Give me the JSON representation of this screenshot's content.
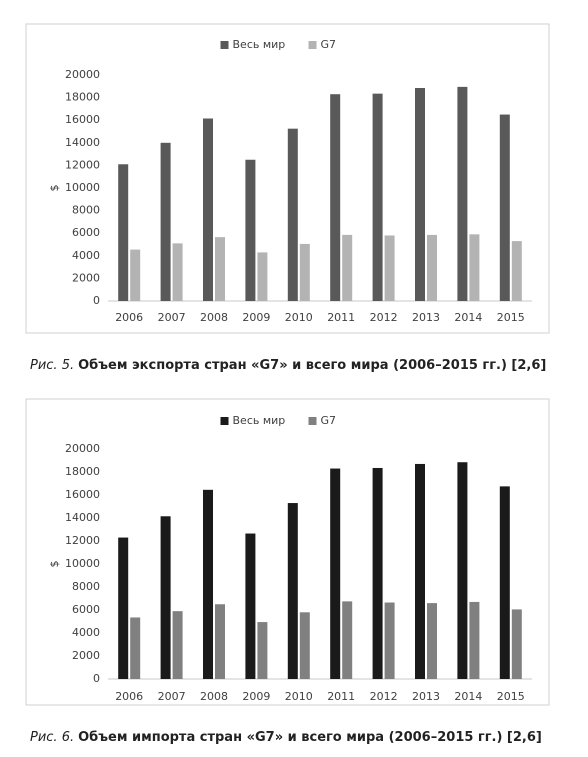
{
  "chart_data": [
    {
      "type": "bar",
      "legend": "top",
      "ylabel": "$",
      "grid": false,
      "categories": [
        "2006",
        "2007",
        "2008",
        "2009",
        "2010",
        "2011",
        "2012",
        "2013",
        "2014",
        "2015"
      ],
      "series": [
        {
          "name": "Весь мир",
          "color": "#595959",
          "values": [
            12100,
            14000,
            16150,
            12500,
            15250,
            18300,
            18350,
            18850,
            18950,
            16500
          ]
        },
        {
          "name": "G7",
          "color": "#b3b3b3",
          "values": [
            4550,
            5100,
            5650,
            4300,
            5050,
            5850,
            5800,
            5850,
            5900,
            5300
          ]
        }
      ],
      "ylim": [
        0,
        20000
      ],
      "yticks": [
        0,
        2000,
        4000,
        6000,
        8000,
        10000,
        12000,
        14000,
        16000,
        18000,
        20000
      ],
      "caption_label": "Рис. 5.",
      "caption": "Объем экспорта стран «G7» и всего мира (2006–2015 гг.) [2,6]"
    },
    {
      "type": "bar",
      "legend": "top",
      "ylabel": "$",
      "grid": false,
      "categories": [
        "2006",
        "2007",
        "2008",
        "2009",
        "2010",
        "2011",
        "2012",
        "2013",
        "2014",
        "2015"
      ],
      "series": [
        {
          "name": "Весь мир",
          "color": "#1a1a1a",
          "values": [
            12300,
            14150,
            16450,
            12650,
            15300,
            18300,
            18350,
            18700,
            18850,
            16750
          ]
        },
        {
          "name": "G7",
          "color": "#808080",
          "values": [
            5350,
            5900,
            6500,
            4950,
            5800,
            6750,
            6650,
            6600,
            6700,
            6050
          ]
        }
      ],
      "ylim": [
        0,
        20000
      ],
      "yticks": [
        0,
        2000,
        4000,
        6000,
        8000,
        10000,
        12000,
        14000,
        16000,
        18000,
        20000
      ],
      "caption_label": "Рис. 6.",
      "caption": "Объем импорта стран «G7» и всего мира (2006–2015 гг.) [2,6]"
    }
  ]
}
